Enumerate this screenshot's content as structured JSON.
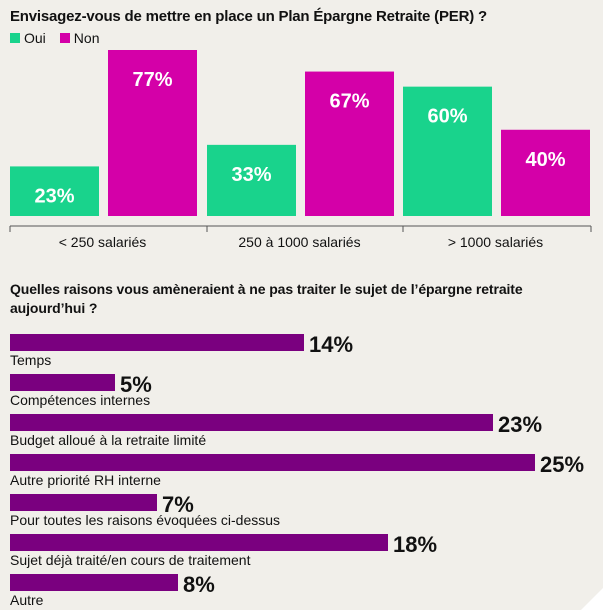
{
  "colors": {
    "oui": "#19d38c",
    "non": "#d400a8",
    "hbar": "#7a007f",
    "axis": "#555555",
    "bg": "#f1efea"
  },
  "chart_data": [
    {
      "type": "bar",
      "title": "Envisagez-vous de mettre en place un Plan Épargne Retraite (PER) ?",
      "categories": [
        "< 250 salariés",
        "250 à 1000 salariés",
        "> 1000 salariés"
      ],
      "series": [
        {
          "name": "Oui",
          "values": [
            23,
            33,
            60
          ],
          "labels": [
            "23%",
            "33%",
            "60%"
          ]
        },
        {
          "name": "Non",
          "values": [
            77,
            67,
            40
          ],
          "labels": [
            "77%",
            "67%",
            "40%"
          ]
        }
      ],
      "unit": "%",
      "ylim": [
        0,
        77
      ],
      "legend": "top-left",
      "grid": false
    },
    {
      "type": "bar",
      "orientation": "horizontal",
      "title": "Quelles raisons vous amèneraient à ne pas traiter le sujet de l’épargne retraite aujourd’hui ?",
      "categories": [
        "Temps",
        "Compétences internes",
        "Budget alloué à la retraite limité",
        "Autre priorité RH interne",
        "Pour toutes les raisons évoquées ci-dessus",
        "Sujet déjà traité/en cours de traitement",
        "Autre"
      ],
      "values": [
        14,
        5,
        23,
        25,
        7,
        18,
        8
      ],
      "labels": [
        "14%",
        "5%",
        "23%",
        "25%",
        "7%",
        "18%",
        "8%"
      ],
      "unit": "%",
      "xlim": [
        0,
        25
      ],
      "grid": false
    }
  ]
}
